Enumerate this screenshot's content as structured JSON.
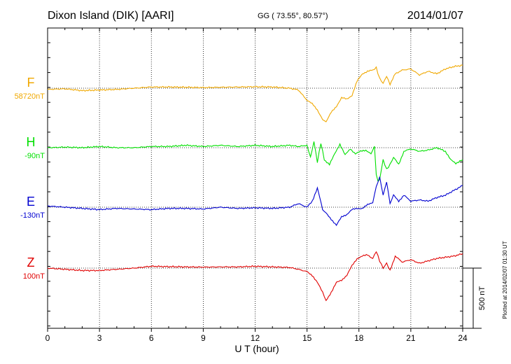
{
  "chart_data": {
    "type": "line",
    "title": "Dixon Island (DIK)  [AARI]",
    "coords": "GG ( 73.55°,  80.57°)",
    "date": "2014/01/07",
    "xlabel": "U T (hour)",
    "xlim": [
      0,
      24
    ],
    "xticks": [
      0,
      3,
      6,
      9,
      12,
      15,
      18,
      21,
      24
    ],
    "grid": true,
    "scale_bar_label": "500 nT",
    "scale_bar_nT": 500,
    "plotted_note": "Plotted at 2014/02/07 01:30 UT",
    "y_unit": "nT (offset from baseline)",
    "series": [
      {
        "name": "F",
        "baseline_label": "58720nT",
        "color": "#f0a800",
        "x": [
          0,
          1,
          2,
          3,
          4,
          5,
          6,
          7,
          8,
          9,
          10,
          11,
          12,
          13,
          14,
          14.5,
          15,
          15.3,
          15.6,
          15.9,
          16.1,
          16.4,
          16.7,
          17,
          17.3,
          17.6,
          17.9,
          18.2,
          18.5,
          18.8,
          19,
          19.2,
          19.4,
          19.6,
          19.8,
          20.1,
          20.5,
          21,
          21.5,
          22,
          22.5,
          23,
          23.5,
          24
        ],
        "y": [
          -10,
          -5,
          -20,
          -15,
          -10,
          0,
          10,
          10,
          8,
          5,
          8,
          10,
          12,
          10,
          0,
          -15,
          -100,
          -130,
          -180,
          -260,
          -280,
          -200,
          -150,
          -80,
          -90,
          -60,
          60,
          120,
          140,
          150,
          170,
          80,
          40,
          100,
          30,
          120,
          150,
          160,
          110,
          140,
          120,
          160,
          180,
          190
        ]
      },
      {
        "name": "H",
        "baseline_label": "-90nT",
        "color": "#00e000",
        "x": [
          0,
          1,
          2,
          3,
          4,
          5,
          6,
          7,
          8,
          9,
          10,
          11,
          12,
          13,
          14,
          14.5,
          15,
          15.2,
          15.4,
          15.6,
          15.8,
          16,
          16.3,
          16.6,
          16.9,
          17.2,
          17.5,
          17.8,
          18.1,
          18.4,
          18.7,
          18.9,
          19,
          19.1,
          19.2,
          19.4,
          19.6,
          19.8,
          20,
          20.3,
          20.6,
          21,
          21.5,
          22,
          22.5,
          23,
          23.3,
          23.6,
          24
        ],
        "y": [
          0,
          5,
          0,
          10,
          0,
          0,
          10,
          10,
          20,
          10,
          20,
          10,
          20,
          10,
          20,
          10,
          20,
          -80,
          50,
          -120,
          40,
          -100,
          -140,
          -50,
          30,
          -60,
          -10,
          -50,
          -30,
          -20,
          -50,
          10,
          -220,
          -280,
          -260,
          -100,
          -180,
          -140,
          -80,
          -140,
          -30,
          -10,
          -30,
          -20,
          0,
          -30,
          -100,
          -130,
          -100
        ]
      },
      {
        "name": "E",
        "baseline_label": "-130nT",
        "color": "#0000d0",
        "x": [
          0,
          1,
          2,
          3,
          4,
          5,
          6,
          7,
          8,
          9,
          10,
          11,
          12,
          13,
          14,
          14.5,
          15,
          15.3,
          15.6,
          15.9,
          16.1,
          16.4,
          16.7,
          17,
          17.3,
          17.6,
          17.9,
          18.2,
          18.5,
          18.8,
          19,
          19.2,
          19.4,
          19.6,
          19.8,
          20,
          20.3,
          20.6,
          21,
          21.5,
          22,
          22.5,
          23,
          23.5,
          24
        ],
        "y": [
          10,
          0,
          -10,
          -20,
          -10,
          -15,
          -20,
          -10,
          -10,
          -15,
          0,
          -10,
          -5,
          -10,
          0,
          30,
          0,
          50,
          160,
          -20,
          -50,
          -100,
          -150,
          -80,
          -60,
          -20,
          -10,
          -10,
          20,
          40,
          170,
          250,
          100,
          210,
          30,
          100,
          50,
          100,
          50,
          60,
          50,
          80,
          100,
          140,
          180
        ]
      },
      {
        "name": "Z",
        "baseline_label": "100nT",
        "color": "#e00000",
        "x": [
          0,
          1,
          2,
          3,
          4,
          5,
          6,
          7,
          8,
          9,
          10,
          11,
          12,
          13,
          14,
          14.5,
          15,
          15.3,
          15.6,
          15.9,
          16.1,
          16.4,
          16.7,
          17,
          17.3,
          17.6,
          17.9,
          18.2,
          18.5,
          18.8,
          19,
          19.2,
          19.4,
          19.6,
          19.8,
          20.1,
          20.5,
          21,
          21.5,
          22,
          22.5,
          23,
          23.5,
          24
        ],
        "y": [
          0,
          -10,
          -20,
          -20,
          -10,
          0,
          15,
          12,
          10,
          8,
          10,
          10,
          15,
          10,
          5,
          -10,
          -30,
          -60,
          -120,
          -200,
          -270,
          -200,
          -120,
          -100,
          -60,
          20,
          80,
          100,
          110,
          80,
          140,
          60,
          0,
          40,
          -20,
          100,
          50,
          70,
          40,
          60,
          80,
          90,
          100,
          120
        ]
      }
    ]
  }
}
